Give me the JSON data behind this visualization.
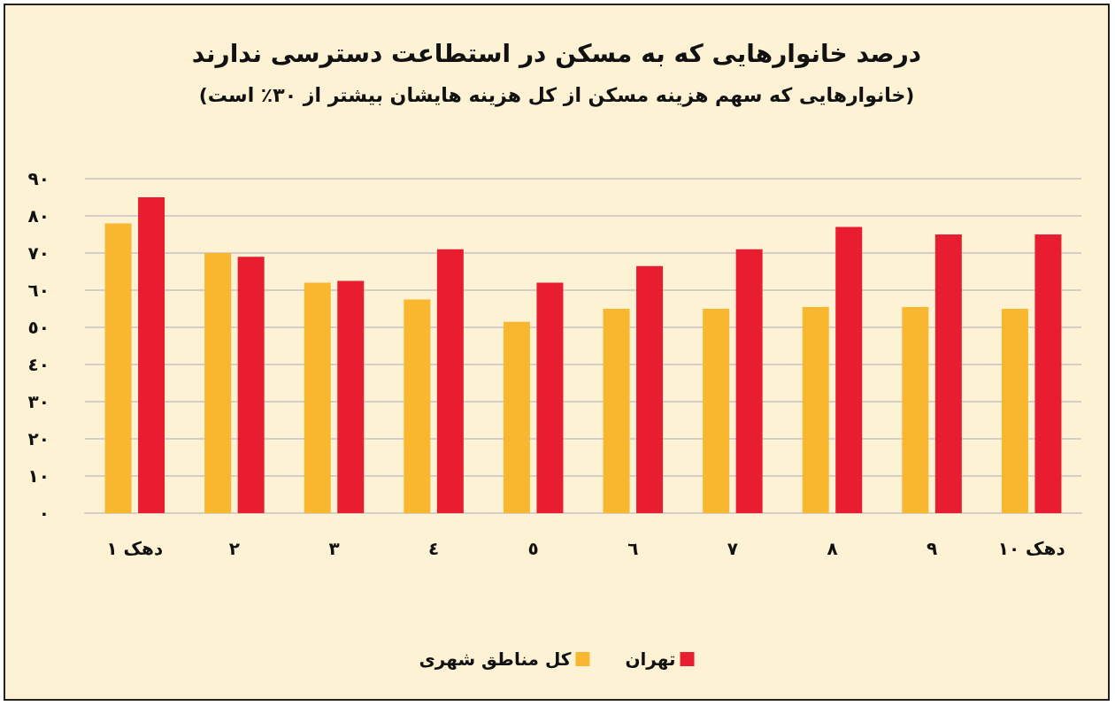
{
  "chart_data": {
    "type": "bar",
    "title": "درصد خانوارهایی که به مسکن در استطاعت دسترسی ندارند",
    "subtitle": "(خانوارهایی که سهم هزینه مسکن از کل هزینه هایشان بیشتر از ٣٠٪ است)",
    "categories": [
      "دهک ١",
      "٢",
      "٣",
      "٤",
      "٥",
      "٦",
      "٧",
      "٨",
      "٩",
      "دهک ١٠"
    ],
    "series": [
      {
        "name": "کل مناطق شهری",
        "color": "#f9b730",
        "values": [
          78,
          70,
          62,
          57.5,
          51.5,
          55,
          55,
          55.5,
          55.5,
          55
        ]
      },
      {
        "name": "تهران",
        "color": "#e81e30",
        "values": [
          85,
          69,
          62.5,
          71,
          62,
          66.5,
          71,
          77,
          75,
          75
        ]
      }
    ],
    "ylim": [
      0,
      90
    ],
    "yticks": [
      {
        "value": 0,
        "label": "٠"
      },
      {
        "value": 10,
        "label": "١٠"
      },
      {
        "value": 20,
        "label": "٢٠"
      },
      {
        "value": 30,
        "label": "٣٠"
      },
      {
        "value": 40,
        "label": "٤٠"
      },
      {
        "value": 50,
        "label": "٥٠"
      },
      {
        "value": 60,
        "label": "٦٠"
      },
      {
        "value": 70,
        "label": "٧٠"
      },
      {
        "value": 80,
        "label": "٨٠"
      },
      {
        "value": 90,
        "label": "٩٠"
      }
    ],
    "grid": true,
    "legend": "bottom"
  }
}
